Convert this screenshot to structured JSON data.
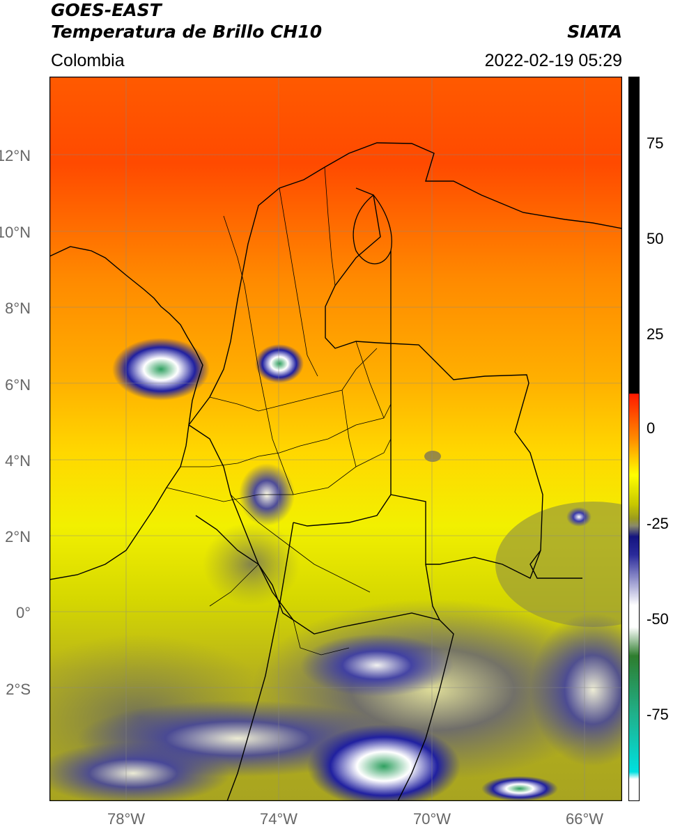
{
  "header": {
    "title_line1": "GOES-EAST",
    "title_line2": "Temperatura de Brillo CH10",
    "region": "Colombia",
    "organization": "SIATA",
    "timestamp": "2022-02-19 05:29"
  },
  "map": {
    "lon_range": [
      -80,
      -65
    ],
    "lat_range": [
      -5,
      14
    ],
    "lat_ticks": [
      "12°N",
      "10°N",
      "8°N",
      "6°N",
      "4°N",
      "2°N",
      "0°",
      "2°S"
    ],
    "lon_ticks": [
      "78°W",
      "74°W",
      "70°W",
      "66°W"
    ],
    "grid": true
  },
  "colorbar": {
    "ticks": [
      "75",
      "50",
      "25",
      "0",
      "-25",
      "-50",
      "-75"
    ],
    "colors": {
      "black": "#000000",
      "red": "#ff1a00",
      "orange": "#ff8c00",
      "yellow": "#ffff00",
      "olive": "#9b9b1e",
      "navy": "#14147f",
      "white": "#ffffff",
      "green": "#2e7d2e",
      "teal": "#20b08a",
      "cyan": "#00e0e0"
    }
  }
}
